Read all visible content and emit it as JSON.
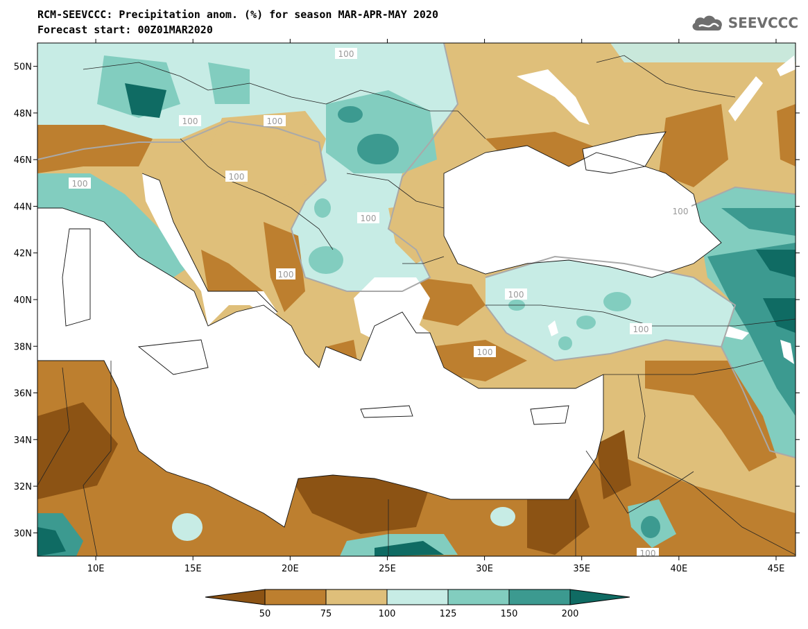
{
  "header": {
    "title_line1": "RCM-SEEVCCC: Precipitation anom. (%) for season MAR-APR-MAY 2020",
    "title_line2": "Forecast start: 00Z01MAR2020",
    "logo_text": "SEEVCCC",
    "logo_icon": "cloud-icon"
  },
  "map": {
    "lat_ticks": [
      "50N",
      "48N",
      "46N",
      "44N",
      "42N",
      "40N",
      "38N",
      "36N",
      "34N",
      "32N",
      "30N"
    ],
    "lon_ticks": [
      "10E",
      "15E",
      "20E",
      "25E",
      "30E",
      "35E",
      "40E",
      "45E"
    ],
    "lat_values": [
      50,
      48,
      46,
      44,
      42,
      40,
      38,
      36,
      34,
      32,
      30
    ],
    "lon_values": [
      10,
      15,
      20,
      25,
      30,
      35,
      40,
      45
    ],
    "extent": {
      "lon_min": 7,
      "lon_max": 46,
      "lat_min": 29,
      "lat_max": 51
    },
    "contour_labels": [
      "100",
      "100",
      "100",
      "100",
      "100",
      "100",
      "100",
      "100",
      "100",
      "100",
      "100",
      "100"
    ]
  },
  "colorbar": {
    "labels": [
      "50",
      "75",
      "100",
      "125",
      "150",
      "200"
    ],
    "colors": [
      "#8c5314",
      "#bd7f2f",
      "#dfbf7a",
      "#c7ece5",
      "#82cdbf",
      "#3c9a90",
      "#0f6b63"
    ]
  },
  "palette": {
    "dry_strong": "#8c5314",
    "dry": "#bd7f2f",
    "dry_light": "#dfbf7a",
    "wet_light": "#c7ece5",
    "wet": "#82cdbf",
    "wet_strong": "#3c9a90",
    "wet_extreme": "#0f6b63",
    "sea": "#ffffff"
  }
}
